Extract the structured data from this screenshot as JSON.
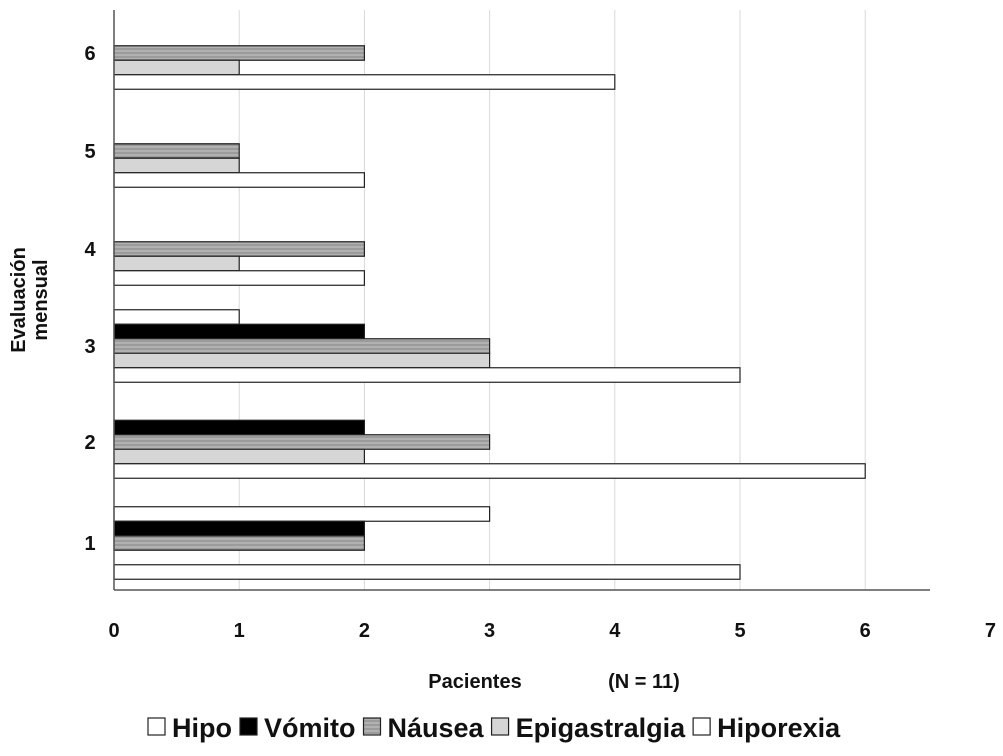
{
  "chart_data": {
    "type": "bar",
    "orientation": "horizontal",
    "categories": [
      "1",
      "2",
      "3",
      "4",
      "5",
      "6"
    ],
    "series": [
      {
        "name": "Hipo",
        "values": [
          3,
          0,
          1,
          0,
          0,
          0
        ],
        "fill": "#ffffff",
        "pattern": "none"
      },
      {
        "name": "Vómito",
        "values": [
          2,
          2,
          2,
          0,
          0,
          0
        ],
        "fill": "#000000",
        "pattern": "none"
      },
      {
        "name": "Náusea",
        "values": [
          2,
          3,
          3,
          2,
          1,
          2
        ],
        "fill": "#bdbdbd",
        "pattern": "dense-lines"
      },
      {
        "name": "Epigastralgia",
        "values": [
          0,
          2,
          3,
          1,
          1,
          1
        ],
        "fill": "#d6d6d6",
        "pattern": "none"
      },
      {
        "name": "Hiporexia",
        "values": [
          5,
          6,
          5,
          2,
          2,
          4
        ],
        "fill": "#ffffff",
        "pattern": "none"
      }
    ],
    "xlabel": "Pacientes",
    "xlabel_note": "(N = 11)",
    "ylabel": "Evaluación mensual",
    "xlim": [
      0,
      7
    ],
    "x_ticks": [
      "0",
      "1",
      "2",
      "3",
      "4",
      "5",
      "6",
      "7"
    ],
    "grid": "vertical",
    "legend_position": "bottom"
  },
  "legend": {
    "items": [
      "Hipo",
      "Vómito",
      "Náusea",
      "Epigastralgia",
      "Hiporexia"
    ]
  }
}
